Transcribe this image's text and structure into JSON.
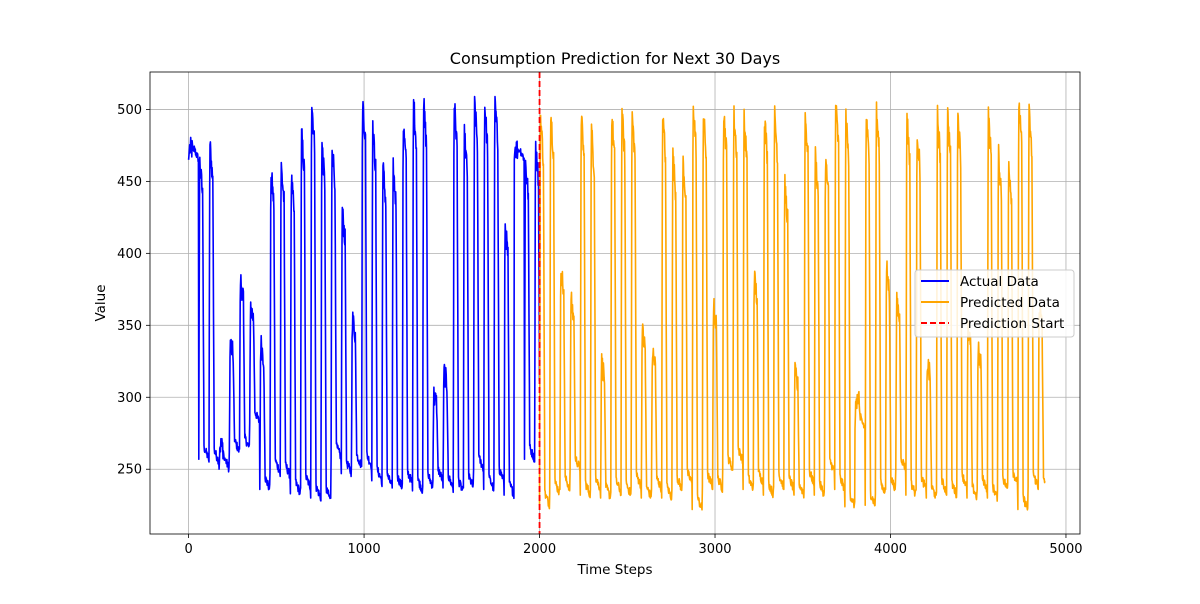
{
  "chart_data": {
    "type": "line",
    "title": "Consumption Prediction for Next 30 Days",
    "xlabel": "Time Steps",
    "ylabel": "Value",
    "xlim": [
      -220,
      5080
    ],
    "ylim": [
      205,
      526
    ],
    "xticks": [
      0,
      1000,
      2000,
      3000,
      4000,
      5000
    ],
    "yticks": [
      250,
      300,
      350,
      400,
      450,
      500
    ],
    "grid": true,
    "legend_position": "center-right",
    "series": [
      {
        "name": "Actual Data",
        "color": "#0000ff",
        "style": "solid",
        "x_range": [
          0,
          2000
        ],
        "cycle_length": 58,
        "peaks": [
          473,
          465,
          477,
          267,
          338,
          383,
          364,
          339,
          459,
          462,
          453,
          485,
          508,
          478,
          477,
          431,
          356,
          508,
          488,
          462,
          461,
          492,
          508,
          506,
          302,
          319,
          507,
          485,
          507,
          505,
          508,
          420
        ],
        "troughs": [
          465,
          257,
          255,
          250,
          262,
          264,
          282,
          236,
          248,
          245,
          233,
          237,
          230,
          228,
          258,
          247,
          252,
          252,
          242,
          238,
          237,
          240,
          235,
          238,
          242,
          237,
          234,
          237,
          250,
          236,
          242,
          232
        ],
        "y_min": 226,
        "y_max": 509
      },
      {
        "name": "Predicted Data",
        "color": "#ffa500",
        "style": "solid",
        "x_range": [
          2000,
          4880
        ],
        "cycle_length": 58,
        "peaks": [
          497,
          501,
          391,
          368,
          497,
          488,
          325,
          498,
          499,
          498,
          347,
          333,
          498,
          470,
          465,
          507,
          499,
          364,
          500,
          498,
          495,
          385,
          498,
          499,
          449,
          317,
          498,
          470,
          467,
          506,
          497,
          300
        ],
        "troughs": [
          225,
          233,
          236,
          250,
          232,
          236,
          230,
          234,
          232,
          238,
          230,
          236,
          230,
          236,
          240,
          222,
          238,
          236,
          250,
          256,
          236,
          240,
          232,
          238,
          236,
          232,
          240,
          232,
          248,
          236,
          224,
          278
        ],
        "y_min": 219,
        "y_max": 507
      },
      {
        "name": "Prediction Start",
        "color": "#ff0000",
        "style": "dashed",
        "x": 2000
      }
    ]
  }
}
